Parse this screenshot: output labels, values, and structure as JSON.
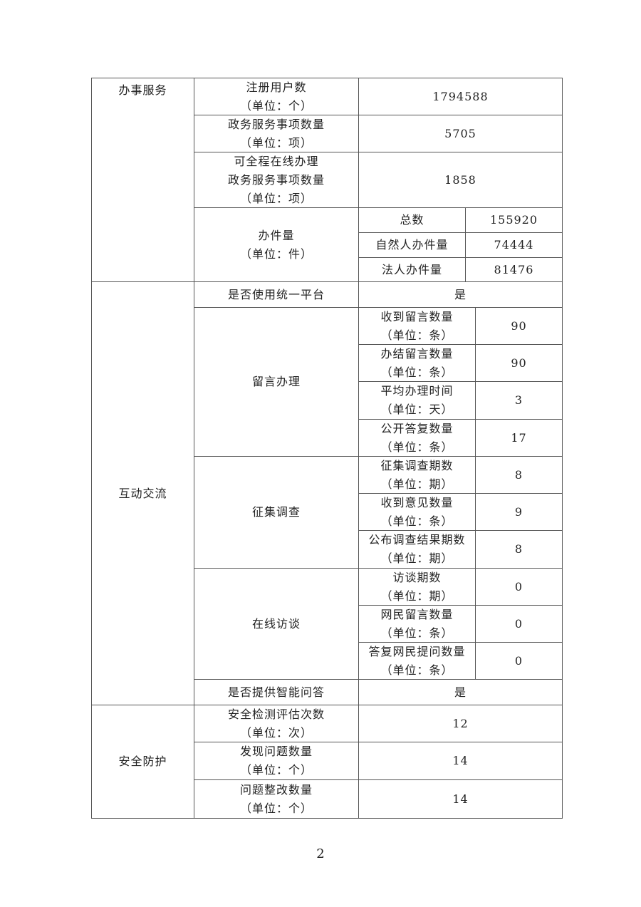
{
  "table": {
    "service": {
      "section": "办事服务",
      "registered_users": {
        "label": "注册用户数\n（单位：个）",
        "value": "1794588"
      },
      "service_items": {
        "label": "政务服务事项数量\n（单位：项）",
        "value": "5705"
      },
      "online_items": {
        "label": "可全程在线办理\n政务服务事项数量\n（单位：项）",
        "value": "1858"
      },
      "cases": {
        "label": "办件量\n（单位：件）",
        "rows": [
          {
            "label": "总数",
            "value": "155920"
          },
          {
            "label": "自然人办件量",
            "value": "74444"
          },
          {
            "label": "法人办件量",
            "value": "81476"
          }
        ]
      }
    },
    "interaction": {
      "section": "互动交流",
      "unified_platform": {
        "label": "是否使用统一平台",
        "value": "是"
      },
      "messages": {
        "label": "留言办理",
        "rows": [
          {
            "label": "收到留言数量\n（单位：条）",
            "value": "90"
          },
          {
            "label": "办结留言数量\n（单位：条）",
            "value": "90"
          },
          {
            "label": "平均办理时间\n（单位：天）",
            "value": "3"
          },
          {
            "label": "公开答复数量\n（单位：条）",
            "value": "17"
          }
        ]
      },
      "surveys": {
        "label": "征集调查",
        "rows": [
          {
            "label": "征集调查期数\n（单位：期）",
            "value": "8"
          },
          {
            "label": "收到意见数量\n（单位：条）",
            "value": "9"
          },
          {
            "label": "公布调查结果期数\n（单位：期）",
            "value": "8"
          }
        ]
      },
      "interviews": {
        "label": "在线访谈",
        "rows": [
          {
            "label": "访谈期数\n（单位：期）",
            "value": "0"
          },
          {
            "label": "网民留言数量\n（单位：条）",
            "value": "0"
          },
          {
            "label": "答复网民提问数量\n（单位：条）",
            "value": "0"
          }
        ]
      },
      "smart_qa": {
        "label": "是否提供智能问答",
        "value": "是"
      }
    },
    "security": {
      "section": "安全防护",
      "rows": [
        {
          "label": "安全检测评估次数\n（单位：次）",
          "value": "12"
        },
        {
          "label": "发现问题数量\n（单位：个）",
          "value": "14"
        },
        {
          "label": "问题整改数量\n（单位：个）",
          "value": "14"
        }
      ]
    }
  },
  "page_number": "2"
}
